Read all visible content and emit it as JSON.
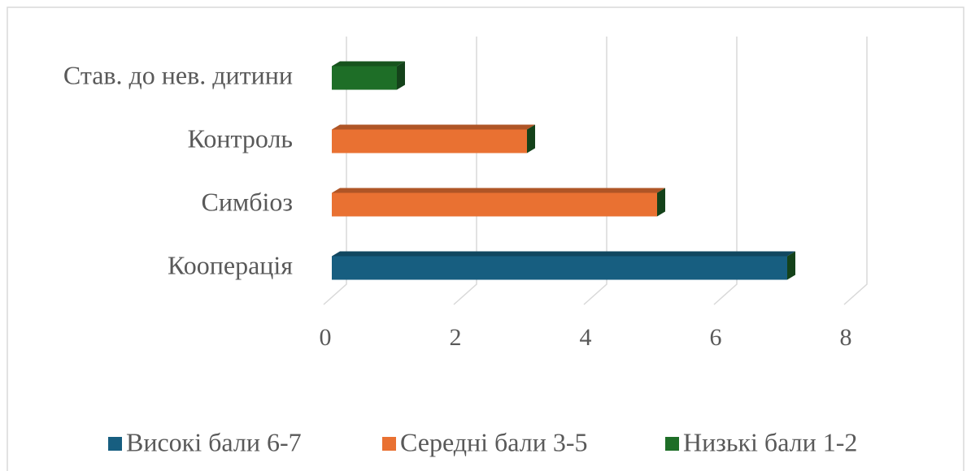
{
  "chart_data": {
    "type": "bar3d_horizontal",
    "categories": [
      "Кооперація",
      "Симбіоз",
      "Контроль",
      "Став. до нев. дитини"
    ],
    "series": [
      {
        "name": "Високі бали 6-7",
        "color": "#175e80",
        "values": [
          7,
          null,
          null,
          null
        ]
      },
      {
        "name": "Середні бали 3-5",
        "color": "#e97132",
        "values": [
          null,
          5,
          3,
          null
        ]
      },
      {
        "name": "Низькі бали 1-2",
        "color": "#1e6e27",
        "values": [
          null,
          null,
          null,
          1
        ]
      }
    ],
    "xlim": [
      0,
      8
    ],
    "xticks": [
      0,
      2,
      4,
      6,
      8
    ],
    "grid": true,
    "legend": "bottom"
  }
}
